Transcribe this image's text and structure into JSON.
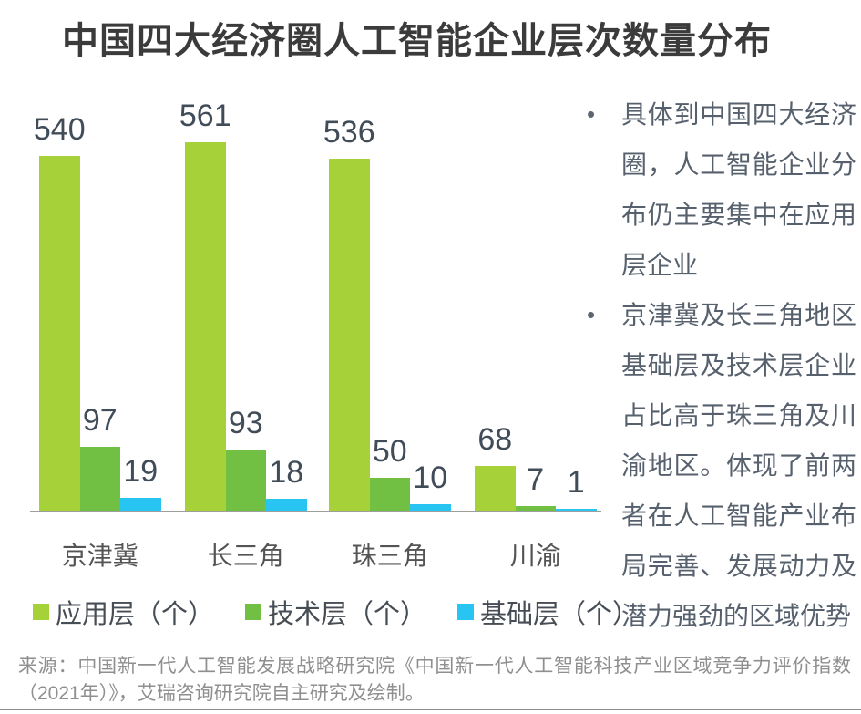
{
  "title": "中国四大经济圈人工智能企业层次数量分布",
  "chart_data": {
    "type": "bar",
    "title": "中国四大经济圈人工智能企业层次数量分布",
    "categories": [
      "京津冀",
      "长三角",
      "珠三角",
      "川渝"
    ],
    "series": [
      {
        "name": "应用层（个）",
        "color": "#a7d138",
        "values": [
          540,
          561,
          536,
          68
        ]
      },
      {
        "name": "技术层（个）",
        "color": "#72c043",
        "values": [
          97,
          93,
          50,
          7
        ]
      },
      {
        "name": "基础层（个）",
        "color": "#29c5f2",
        "values": [
          19,
          18,
          10,
          1
        ]
      }
    ],
    "xlabel": "",
    "ylabel": "",
    "ylim": [
      0,
      580
    ],
    "grid": false,
    "value_labels": true,
    "legend_position": "bottom"
  },
  "insights": {
    "bullets": [
      "具体到中国四大经济圈，人工智能企业分布仍主要集中在应用层企业",
      "京津冀及长三角地区基础层及技术层企业占比高于珠三角及川渝地区。体现了前两者在人工智能产业布局完善、发展动力及潜力强劲的区域优势"
    ]
  },
  "source": "来源：中国新一代人工智能发展战略研究院《中国新一代人工智能科技产业区域竞争力评价指数（2021年）》，艾瑞咨询研究院自主研究及绘制。",
  "colors": {
    "app_layer": "#a7d138",
    "tech_layer": "#72c043",
    "base_layer": "#29c5f2",
    "axis": "#9e9e9e",
    "title_text": "#3b3b3b",
    "value_label_text": "#414c59",
    "bullet_text": "#57616e",
    "source_text": "#8f8f8f"
  }
}
